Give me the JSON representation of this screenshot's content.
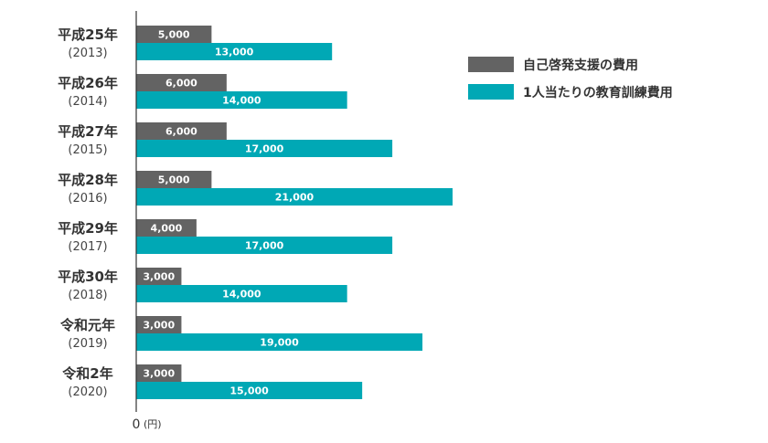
{
  "chart_data": {
    "type": "bar",
    "orientation": "horizontal",
    "categories": [
      {
        "main": "平成25年",
        "sub": "(2013)"
      },
      {
        "main": "平成26年",
        "sub": "(2014)"
      },
      {
        "main": "平成27年",
        "sub": "(2015)"
      },
      {
        "main": "平成28年",
        "sub": "(2016)"
      },
      {
        "main": "平成29年",
        "sub": "(2017)"
      },
      {
        "main": "平成30年",
        "sub": "(2018)"
      },
      {
        "main": "令和元年",
        "sub": "(2019)"
      },
      {
        "main": "令和2年",
        "sub": "(2020)"
      }
    ],
    "series": [
      {
        "name": "自己啓発支援の費用",
        "color": "#636363",
        "values": [
          5000,
          6000,
          6000,
          5000,
          4000,
          3000,
          3000,
          3000
        ],
        "labels": [
          "5,000",
          "6,000",
          "6,000",
          "5,000",
          "4,000",
          "3,000",
          "3,000",
          "3,000"
        ]
      },
      {
        "name": "1人当たりの教育訓練費用",
        "color": "#00a8b5",
        "values": [
          13000,
          14000,
          17000,
          21000,
          17000,
          14000,
          19000,
          15000
        ],
        "labels": [
          "13,000",
          "14,000",
          "17,000",
          "21,000",
          "17,000",
          "14,000",
          "19,000",
          "15,000"
        ]
      }
    ],
    "xlim": [
      0,
      21000
    ],
    "zero_label": "0",
    "unit": "(円)",
    "legend_position": "top-right"
  }
}
